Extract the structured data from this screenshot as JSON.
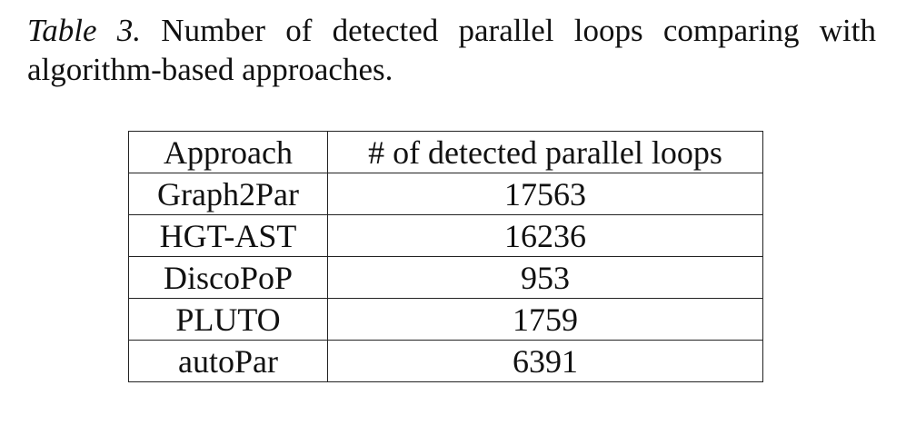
{
  "caption": {
    "label": "Table 3.",
    "text": " Number of detected parallel loops comparing with algorithm-based approaches."
  },
  "table": {
    "headers": [
      "Approach",
      "# of detected parallel loops"
    ],
    "rows": [
      {
        "approach": "Graph2Par",
        "count": "17563"
      },
      {
        "approach": "HGT-AST",
        "count": "16236"
      },
      {
        "approach": "DiscoPoP",
        "count": "953"
      },
      {
        "approach": "PLUTO",
        "count": "1759"
      },
      {
        "approach": "autoPar",
        "count": "6391"
      }
    ]
  }
}
